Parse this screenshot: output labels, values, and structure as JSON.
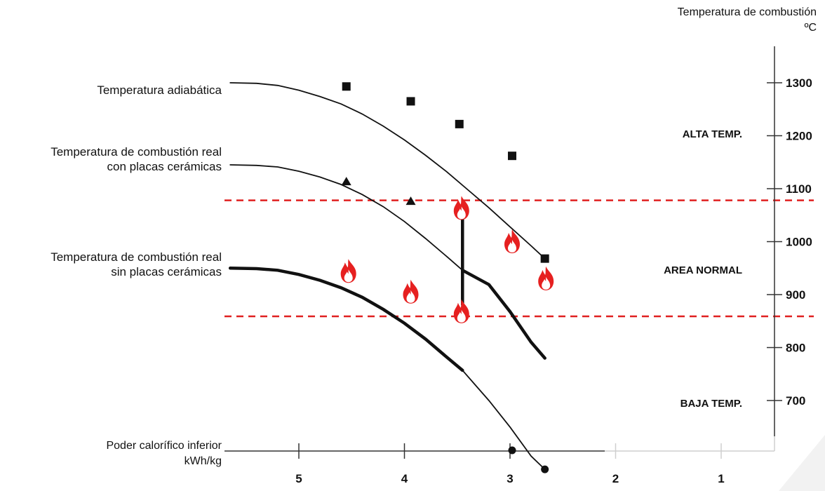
{
  "chart_data": {
    "type": "line",
    "mirrored": true,
    "y_axis_title_line1": "Temperatura de combustión",
    "y_axis_title_line2": "ºC",
    "x_axis_title_line1": "Poder calorífico inferior",
    "x_axis_title_line2": "kWh/kg",
    "x_ticks": [
      1,
      2,
      3,
      4,
      5
    ],
    "y_ticks": [
      700,
      800,
      900,
      1000,
      1100,
      1200,
      1300
    ],
    "y_tick_labels": [
      "700",
      "800",
      "900",
      "1000",
      "1100",
      "1200",
      "1300"
    ],
    "xlim": [
      0.5,
      5.5
    ],
    "ylim": [
      620,
      1400
    ],
    "zones": [
      {
        "label": "ALTA TEMP.",
        "y": 1200
      },
      {
        "label": "AREA NORMAL",
        "y": 950
      },
      {
        "label": "BAJA TEMP.",
        "y": 700
      }
    ],
    "reference_lines": [
      {
        "y": 1078,
        "color": "#e02020",
        "style": "dashed"
      },
      {
        "y": 859,
        "color": "#e02020",
        "style": "dashed"
      }
    ],
    "series": [
      {
        "name": "Temperatura adiabática",
        "line_x": [
          5.65,
          5.4,
          5.2,
          5.0,
          4.8,
          4.6,
          4.4,
          4.2,
          4.0,
          3.8,
          3.6,
          3.4,
          3.2,
          3.0,
          2.8,
          2.67
        ],
        "line_y": [
          1300,
          1299,
          1295,
          1286,
          1274,
          1260,
          1241,
          1218,
          1192,
          1163,
          1132,
          1098,
          1064,
          1028,
          992,
          968
        ],
        "marker_x": [
          4.55,
          3.94,
          3.48,
          2.98,
          2.67
        ],
        "marker_y": [
          1293,
          1265,
          1222,
          1162,
          968
        ],
        "marker": "square",
        "color": "#111111"
      },
      {
        "name": "Temperatura de combustión real con placas cerámicas",
        "line_x": [
          5.65,
          5.4,
          5.2,
          5.0,
          4.8,
          4.6,
          4.4,
          4.2,
          4.0,
          3.8,
          3.6,
          3.45,
          3.2,
          3.0,
          2.8,
          2.67
        ],
        "line_y": [
          1145,
          1144,
          1141,
          1133,
          1122,
          1108,
          1089,
          1066,
          1038,
          1006,
          972,
          946,
          919,
          868,
          810,
          780
        ],
        "marker_x": [
          4.55,
          3.94
        ],
        "marker_y": [
          1113,
          1076
        ],
        "marker": "triangle",
        "bold_from_x": 3.45,
        "color": "#111111"
      },
      {
        "name": "Temperatura de combustión real sin placas cerámicas",
        "line_x": [
          5.65,
          5.4,
          5.2,
          5.0,
          4.8,
          4.6,
          4.4,
          4.2,
          4.0,
          3.8,
          3.6,
          3.45,
          3.2,
          3.0,
          2.8,
          2.67
        ],
        "line_y": [
          950,
          949,
          946,
          938,
          927,
          913,
          895,
          872,
          846,
          816,
          782,
          757,
          700,
          650,
          595,
          570
        ],
        "marker_x": [
          2.98,
          2.67
        ],
        "marker_y": [
          606,
          570
        ],
        "marker": "circle",
        "bold_to_x": 3.45,
        "color": "#111111"
      }
    ],
    "flame_points": [
      {
        "x": 4.53,
        "y": 942
      },
      {
        "x": 3.94,
        "y": 903
      },
      {
        "x": 3.46,
        "y": 866
      },
      {
        "x": 3.46,
        "y": 1061
      },
      {
        "x": 2.98,
        "y": 998
      },
      {
        "x": 2.66,
        "y": 928
      }
    ],
    "transition_line": {
      "x": 3.45,
      "y_from": 880,
      "y_to": 1050
    }
  },
  "colors": {
    "line": "#111111",
    "reference": "#e02020",
    "flame": "#e62020",
    "axis": "#333333"
  }
}
